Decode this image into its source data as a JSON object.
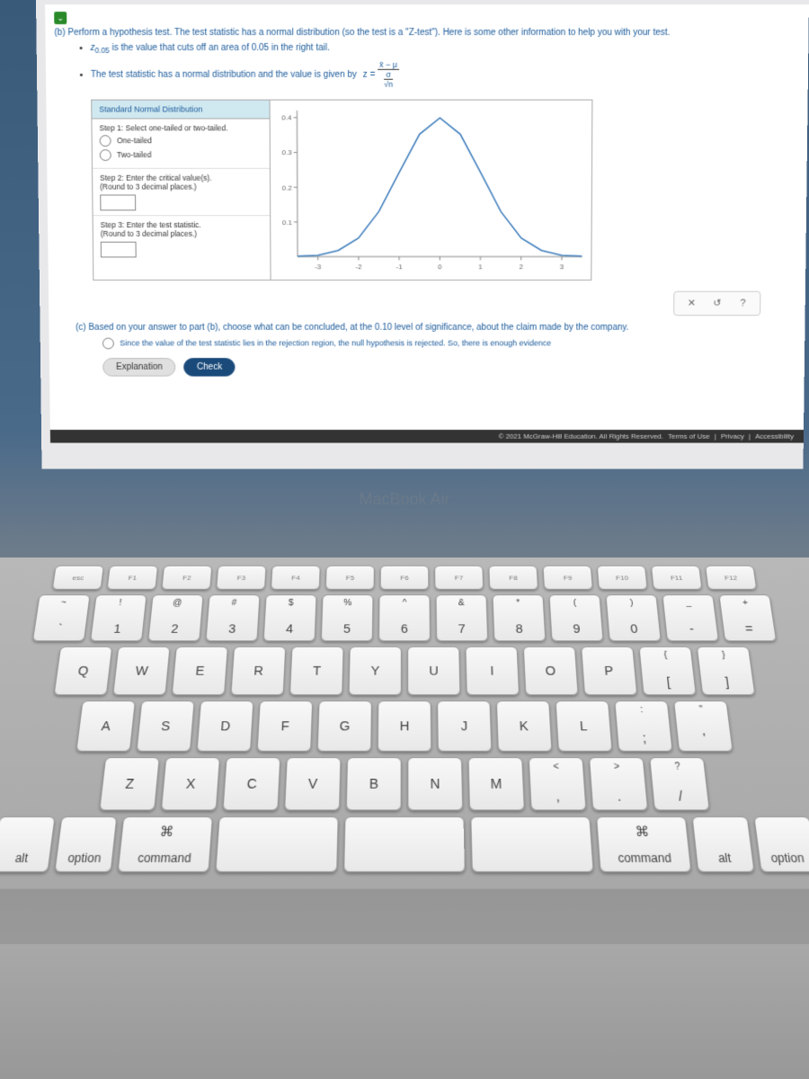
{
  "content": {
    "part_b_label": "(b)",
    "part_b_text": "Perform a hypothesis test. The test statistic has a normal distribution (so the test is a \"Z-test\"). Here is some other information to help you with your test.",
    "bullet1_pre": "z",
    "bullet1_sub": "0.05",
    "bullet1_post": " is the value that cuts off an area of 0.05 in the right tail.",
    "bullet2": "The test statistic has a normal distribution and the value is given by ",
    "formula_lhs": "z =",
    "formula_num": "x̄ − μ",
    "formula_den_sigma": "σ",
    "formula_den_sqrt": "√n",
    "panel_header": "Standard Normal Distribution",
    "step1": "Step 1: Select one-tailed or two-tailed.",
    "opt_one": "One-tailed",
    "opt_two": "Two-tailed",
    "step2": "Step 2: Enter the critical value(s).\n(Round to 3 decimal places.)",
    "step3": "Step 3: Enter the test statistic.\n(Round to 3 decimal places.)",
    "act_x": "✕",
    "act_reset": "↺",
    "act_help": "?",
    "part_c": "(c) Based on your answer to part (b), choose what can be concluded, at the 0.10 level of significance, about the claim made by the company.",
    "answer1": "Since the value of the test statistic lies in the rejection region, the null hypothesis is rejected. So, there is enough evidence",
    "explain": "Explanation",
    "check": "Check",
    "footer": "© 2021 McGraw-Hill Education. All Rights Reserved.",
    "footer_terms": "Terms of Use",
    "footer_privacy": "Privacy",
    "footer_access": "Accessibility"
  },
  "chart": {
    "x_ticks": [
      -3,
      -2,
      -1,
      0,
      1,
      2,
      3
    ],
    "y_ticks": [
      0.1,
      0.2,
      0.3,
      0.4
    ],
    "curve_color": "#3a7aba",
    "axis_color": "#888888",
    "points": [
      {
        "x": -3.5,
        "y": 0.001
      },
      {
        "x": -3,
        "y": 0.004
      },
      {
        "x": -2.5,
        "y": 0.018
      },
      {
        "x": -2,
        "y": 0.054
      },
      {
        "x": -1.5,
        "y": 0.13
      },
      {
        "x": -1,
        "y": 0.242
      },
      {
        "x": -0.5,
        "y": 0.352
      },
      {
        "x": 0,
        "y": 0.399
      },
      {
        "x": 0.5,
        "y": 0.352
      },
      {
        "x": 1,
        "y": 0.242
      },
      {
        "x": 1.5,
        "y": 0.13
      },
      {
        "x": 2,
        "y": 0.054
      },
      {
        "x": 2.5,
        "y": 0.018
      },
      {
        "x": 3,
        "y": 0.004
      },
      {
        "x": 3.5,
        "y": 0.001
      }
    ]
  },
  "hinge": "MacBook Air",
  "keys": {
    "fn_row": [
      "esc",
      "F1",
      "F2",
      "F3",
      "F4",
      "F5",
      "F6",
      "F7",
      "F8",
      "F9",
      "F10",
      "F11",
      "F12"
    ],
    "num_row": [
      {
        "u": "~",
        "l": "`"
      },
      {
        "u": "!",
        "l": "1"
      },
      {
        "u": "@",
        "l": "2"
      },
      {
        "u": "#",
        "l": "3"
      },
      {
        "u": "$",
        "l": "4"
      },
      {
        "u": "%",
        "l": "5"
      },
      {
        "u": "^",
        "l": "6"
      },
      {
        "u": "&",
        "l": "7"
      },
      {
        "u": "*",
        "l": "8"
      },
      {
        "u": "(",
        "l": "9"
      },
      {
        "u": ")",
        "l": "0"
      },
      {
        "u": "_",
        "l": "-"
      },
      {
        "u": "+",
        "l": "="
      }
    ],
    "qwerty": [
      "Q",
      "W",
      "E",
      "R",
      "T",
      "Y",
      "U",
      "I",
      "O",
      "P"
    ],
    "qwerty_end": [
      {
        "u": "{",
        "l": "["
      },
      {
        "u": "}",
        "l": "]"
      }
    ],
    "asdf": [
      "A",
      "S",
      "D",
      "F",
      "G",
      "H",
      "J",
      "K",
      "L"
    ],
    "asdf_end": [
      {
        "u": ":",
        "l": ";"
      },
      {
        "u": "\"",
        "l": "'"
      }
    ],
    "zxcv": [
      "Z",
      "X",
      "C",
      "V",
      "B",
      "N",
      "M"
    ],
    "zxcv_end": [
      {
        "u": "<",
        "l": ","
      },
      {
        "u": ">",
        "l": "."
      },
      {
        "u": "?",
        "l": "/"
      }
    ],
    "cmd_sym": "⌘",
    "alt": "alt",
    "option": "option",
    "command": "command"
  }
}
